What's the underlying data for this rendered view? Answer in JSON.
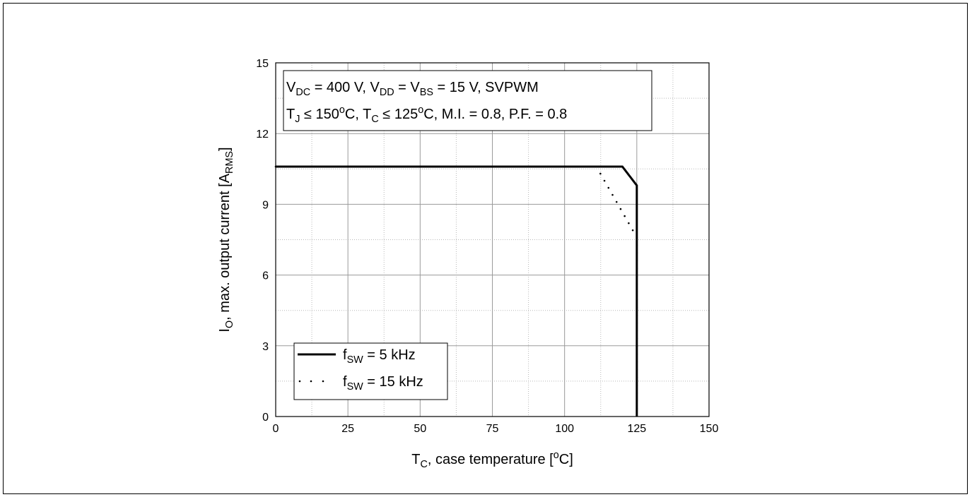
{
  "chart_data": {
    "type": "line",
    "xlabel": {
      "main": "T",
      "sub": "C",
      "rest": ", case temperature [",
      "sup": "o",
      "end": "C]"
    },
    "ylabel": {
      "main": "I",
      "sub": "O",
      "rest": ", max. output current [A",
      "sub2": "RMS",
      "end": "]"
    },
    "xlim": [
      0,
      150
    ],
    "ylim": [
      0,
      15
    ],
    "xticks": [
      0,
      25,
      50,
      75,
      100,
      125,
      150
    ],
    "yticks": [
      0,
      3,
      6,
      9,
      12,
      15
    ],
    "x_minor_step": 12.5,
    "y_minor_step": 1.5,
    "grid": true,
    "annotation": {
      "line1": [
        {
          "t": "V"
        },
        {
          "t": "DC",
          "sub": true
        },
        {
          "t": " = 400 V, V"
        },
        {
          "t": "DD",
          "sub": true
        },
        {
          "t": " = V"
        },
        {
          "t": "BS",
          "sub": true
        },
        {
          "t": " = 15 V, SVPWM"
        }
      ],
      "line2": [
        {
          "t": "T"
        },
        {
          "t": "J",
          "sub": true
        },
        {
          "t": " ≤ 150"
        },
        {
          "t": "o",
          "sup": true
        },
        {
          "t": "C, T"
        },
        {
          "t": "C",
          "sub": true
        },
        {
          "t": " ≤ 125"
        },
        {
          "t": "o",
          "sup": true
        },
        {
          "t": "C, M.I. = 0.8, P.F. = 0.8"
        }
      ]
    },
    "legend_position": "bottom-left",
    "series": [
      {
        "name": {
          "main": "f",
          "sub": "SW",
          "rest": " = 5 kHz"
        },
        "style": "solid",
        "color": "#000000",
        "x": [
          0,
          120,
          125,
          125
        ],
        "y": [
          10.6,
          10.6,
          9.8,
          0
        ]
      },
      {
        "name": {
          "main": "f",
          "sub": "SW",
          "rest": " = 15 kHz"
        },
        "style": "dotted",
        "color": "#000000",
        "x": [
          0,
          111,
          125,
          125
        ],
        "y": [
          10.6,
          10.6,
          7.6,
          0
        ]
      }
    ]
  }
}
